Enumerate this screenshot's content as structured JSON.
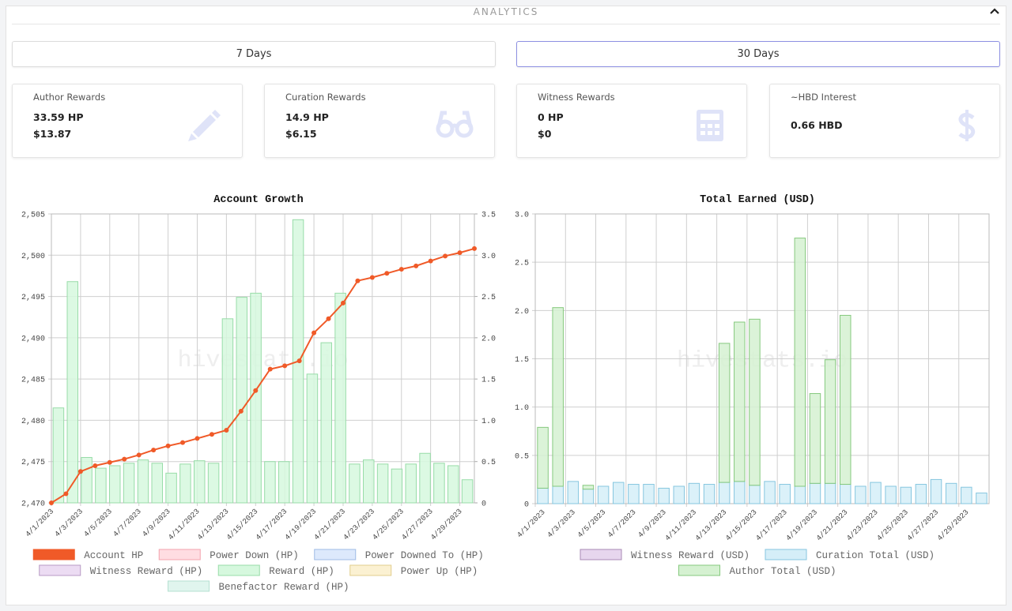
{
  "header": {
    "title": "ANALYTICS"
  },
  "buttons": [
    "7 Days",
    "30 Days"
  ],
  "cards": [
    {
      "title": "Author Rewards",
      "lines": [
        "33.59 HP",
        "$13.87"
      ]
    },
    {
      "title": "Curation Rewards",
      "lines": [
        "14.9 HP",
        "$6.15"
      ]
    },
    {
      "title": "Witness Rewards",
      "lines": [
        "0 HP",
        "$0"
      ]
    },
    {
      "title": "~HBD Interest",
      "lines": [
        "0.66 HBD"
      ]
    }
  ],
  "chart_data": [
    {
      "type": "combo",
      "title": "Account Growth",
      "watermark": "hivestats.io",
      "grid": true,
      "legend": "bottom",
      "categories": [
        "4/1/2023",
        null,
        "4/3/2023",
        null,
        "4/5/2023",
        null,
        "4/7/2023",
        null,
        "4/9/2023",
        null,
        "4/11/2023",
        null,
        "4/13/2023",
        null,
        "4/15/2023",
        null,
        "4/17/2023",
        null,
        "4/19/2023",
        null,
        "4/21/2023",
        null,
        "4/23/2023",
        null,
        "4/25/2023",
        null,
        "4/27/2023",
        null,
        "4/29/2023",
        null
      ],
      "ylim": [
        2470,
        2505
      ],
      "yticks": [
        {
          "value": 2470,
          "label": "2,470"
        },
        {
          "value": 2475,
          "label": "2,475"
        },
        {
          "value": 2480,
          "label": "2,480"
        },
        {
          "value": 2485,
          "label": "2,485"
        },
        {
          "value": 2490,
          "label": "2,490"
        },
        {
          "value": 2495,
          "label": "2,495"
        },
        {
          "value": 2500,
          "label": "2,500"
        },
        {
          "value": 2505,
          "label": "2,505"
        }
      ],
      "y2lim": [
        0,
        3.5
      ],
      "y2ticks": [
        0,
        0.5,
        {
          "value": 1,
          "label": "1.0"
        },
        1.5,
        {
          "value": 2,
          "label": "2.0"
        },
        2.5,
        {
          "value": 3,
          "label": "3.0"
        },
        3.5
      ],
      "series": [
        {
          "name": "Account HP",
          "type": "line",
          "color": "#f05a28",
          "values": [
            2470.0,
            2471.1,
            2473.8,
            2474.5,
            2474.9,
            2475.3,
            2475.8,
            2476.4,
            2476.9,
            2477.3,
            2477.8,
            2478.3,
            2478.8,
            2481.1,
            2483.6,
            2486.2,
            2486.6,
            2487.2,
            2490.6,
            2492.3,
            2494.2,
            2496.9,
            2497.3,
            2497.8,
            2498.3,
            2498.7,
            2499.3,
            2499.9,
            2500.3,
            2500.8
          ]
        },
        {
          "name": "Power Down (HP)",
          "color": "#ffdde2",
          "border": "#f3a3ae"
        },
        {
          "name": "Power Downed To (HP)",
          "color": "#dde9fc",
          "border": "#9fbbe6"
        },
        {
          "name": "Witness Reward (HP)",
          "color": "#ecdcf3",
          "border": "#b79ac4"
        },
        {
          "name": "Reward (HP)",
          "type": "bar",
          "axis": "y2",
          "color": "#d6f8de",
          "border": "#98dca8",
          "values": [
            1.15,
            2.68,
            0.55,
            0.42,
            0.45,
            0.48,
            0.52,
            0.48,
            0.36,
            0.47,
            0.51,
            0.48,
            2.23,
            2.49,
            2.54,
            0.5,
            0.5,
            3.43,
            1.56,
            1.94,
            2.54,
            0.47,
            0.52,
            0.47,
            0.41,
            0.47,
            0.6,
            0.48,
            0.45,
            0.28
          ]
        },
        {
          "name": "Power Up (HP)",
          "color": "#fbf1d2",
          "border": "#e2cd8c"
        },
        {
          "name": "Benefactor Reward (HP)",
          "color": "#e0f5ee",
          "border": "#b5e0d1"
        }
      ]
    },
    {
      "type": "bar",
      "stacked": true,
      "title": "Total Earned (USD)",
      "watermark": "hivestats.io",
      "grid": true,
      "legend": "bottom",
      "categories": [
        "4/1/2023",
        null,
        "4/3/2023",
        null,
        "4/5/2023",
        null,
        "4/7/2023",
        null,
        "4/9/2023",
        null,
        "4/11/2023",
        null,
        "4/13/2023",
        null,
        "4/15/2023",
        null,
        "4/17/2023",
        null,
        "4/19/2023",
        null,
        "4/21/2023",
        null,
        "4/23/2023",
        null,
        "4/25/2023",
        null,
        "4/27/2023",
        null,
        "4/29/2023",
        null
      ],
      "ylim": [
        0,
        3
      ],
      "yticks": [
        0,
        0.5,
        {
          "value": 1,
          "label": "1.0"
        },
        1.5,
        {
          "value": 2,
          "label": "2.0"
        },
        2.5,
        {
          "value": 3,
          "label": "3.0"
        }
      ],
      "series": [
        {
          "name": "Witness Reward (USD)",
          "color": "#e7d6ee",
          "border": "#a98bb5",
          "values": [
            0,
            0,
            0,
            0,
            0,
            0,
            0,
            0,
            0,
            0,
            0,
            0,
            0,
            0,
            0,
            0,
            0,
            0,
            0,
            0,
            0,
            0,
            0,
            0,
            0,
            0,
            0,
            0,
            0,
            0
          ]
        },
        {
          "name": "Curation Total (USD)",
          "color": "#d5eef8",
          "border": "#86c6df",
          "values": [
            0.16,
            0.18,
            0.23,
            0.15,
            0.18,
            0.22,
            0.2,
            0.2,
            0.16,
            0.18,
            0.21,
            0.2,
            0.22,
            0.23,
            0.19,
            0.23,
            0.2,
            0.18,
            0.21,
            0.21,
            0.2,
            0.18,
            0.22,
            0.18,
            0.17,
            0.2,
            0.25,
            0.21,
            0.17,
            0.11
          ]
        },
        {
          "name": "Author Total (USD)",
          "color": "#d5f1d1",
          "border": "#86c97e",
          "values": [
            0.63,
            1.85,
            0,
            0.04,
            0,
            0,
            0,
            0,
            0,
            0,
            0,
            0,
            1.44,
            1.65,
            1.72,
            0,
            0,
            2.57,
            0.93,
            1.28,
            1.75,
            0,
            0,
            0,
            0,
            0,
            0,
            0,
            0,
            0
          ]
        }
      ]
    }
  ]
}
